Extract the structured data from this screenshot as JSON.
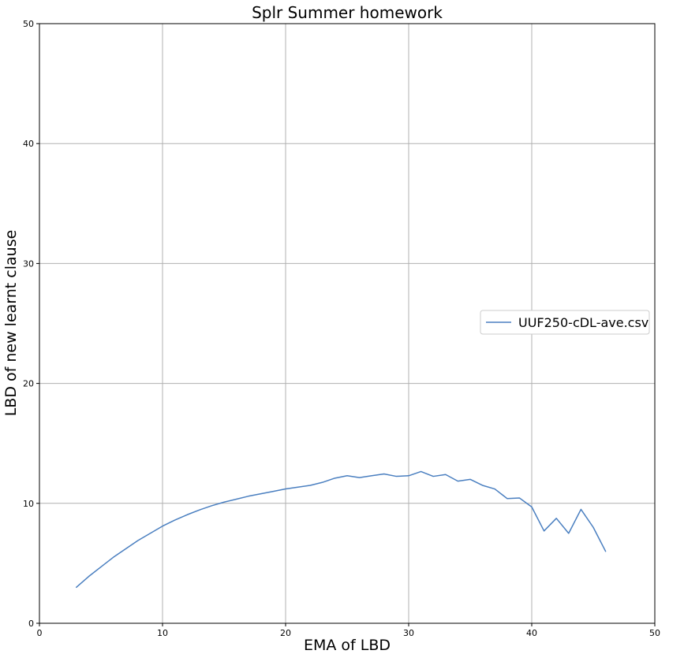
{
  "chart_data": {
    "type": "line",
    "title": "Splr Summer homework",
    "xlabel": "EMA of LBD",
    "ylabel": "LBD of new learnt clause",
    "xlim": [
      0,
      50
    ],
    "ylim": [
      0,
      50
    ],
    "xticks": [
      0,
      10,
      20,
      30,
      40,
      50
    ],
    "yticks": [
      0,
      10,
      20,
      30,
      40,
      50
    ],
    "grid": true,
    "legend_position": "center-right",
    "series": [
      {
        "name": "UUF250-cDL-ave.csv",
        "color": "#4a7fc0",
        "x": [
          3,
          4,
          5,
          6,
          7,
          8,
          9,
          10,
          11,
          12,
          13,
          14,
          15,
          16,
          17,
          18,
          19,
          20,
          21,
          22,
          23,
          24,
          25,
          26,
          27,
          28,
          29,
          30,
          31,
          32,
          33,
          34,
          35,
          36,
          37,
          38,
          39,
          40,
          41,
          42,
          43,
          44,
          45,
          46
        ],
        "y": [
          3.0,
          3.9,
          4.7,
          5.5,
          6.2,
          6.9,
          7.5,
          8.1,
          8.6,
          9.05,
          9.45,
          9.8,
          10.1,
          10.35,
          10.6,
          10.8,
          11.0,
          11.2,
          11.35,
          11.5,
          11.75,
          12.1,
          12.3,
          12.15,
          12.3,
          12.45,
          12.25,
          12.3,
          12.65,
          12.25,
          12.4,
          11.85,
          12.0,
          11.5,
          11.2,
          10.4,
          10.45,
          9.7,
          7.7,
          8.75,
          7.5,
          9.5,
          8.0,
          6.0
        ]
      }
    ]
  }
}
